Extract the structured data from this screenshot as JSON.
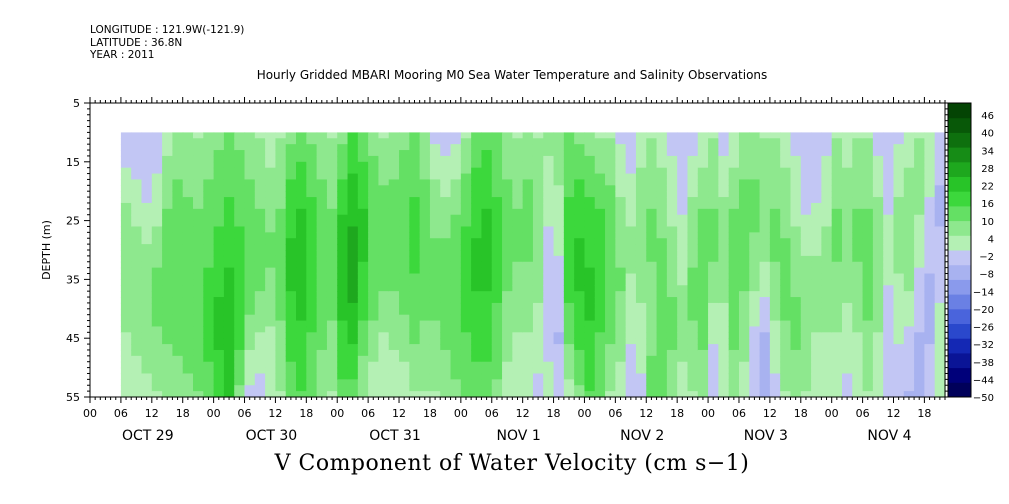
{
  "header": {
    "longitude": "LONGITUDE : 121.9W(-121.9)",
    "latitude": "LATITUDE : 36.8N",
    "year": "YEAR : 2011",
    "title": "Hourly Gridded MBARI Mooring M0 Sea Water Temperature and Salinity Observations",
    "subtitle": "V Component of Water Velocity (cm s−1)"
  },
  "chart_data": {
    "type": "heatmap",
    "title": "Hourly Gridded MBARI Mooring M0 Sea Water Temperature and Salinity Observations",
    "variable": "V Component of Water Velocity (cm s−1)",
    "ylabel": "DEPTH (m)",
    "y_ticks": [
      5,
      15,
      25,
      35,
      45,
      55
    ],
    "ylim": [
      5,
      55
    ],
    "data_depth_range": [
      10,
      55
    ],
    "x_day_labels": [
      "OCT 29",
      "OCT 30",
      "OCT 31",
      "NOV  1",
      "NOV  2",
      "NOV  3",
      "NOV  4"
    ],
    "x_hour_labels": [
      "00",
      "06",
      "12",
      "18"
    ],
    "x_range_hours": [
      0,
      166
    ],
    "data_start_hour": 6,
    "colorbar": {
      "labels": [
        "46",
        "40",
        "34",
        "28",
        "22",
        "16",
        "10",
        "4",
        "−2",
        "−8",
        "−14",
        "−20",
        "−26",
        "−32",
        "−38",
        "−44",
        "−50"
      ],
      "min": -50,
      "max": 49,
      "step": 3,
      "colors_low_to_high": [
        "#00005a",
        "#00007a",
        "#0a1496",
        "#1428b4",
        "#2a48cc",
        "#4a64dc",
        "#6a80e4",
        "#8a9aec",
        "#a8b2f0",
        "#c2c6f4",
        "#b4f0b4",
        "#8ee88e",
        "#64e064",
        "#3cd83c",
        "#28c428",
        "#1ea81e",
        "#168c16",
        "#0e700e",
        "#085808",
        "#044404"
      ]
    },
    "columns_profile": [
      {
        "hour": 6,
        "v": [
          -4,
          -1,
          3,
          6,
          8,
          8,
          6,
          4,
          4,
          3
        ]
      },
      {
        "hour": 8,
        "v": [
          -5,
          -3,
          1,
          4,
          6,
          7,
          7,
          6,
          3,
          1
        ]
      },
      {
        "hour": 10,
        "v": [
          -3,
          -3,
          -2,
          2,
          5,
          8,
          9,
          8,
          5,
          2
        ]
      },
      {
        "hour": 12,
        "v": [
          -1,
          -2,
          2,
          4,
          8,
          10,
          10,
          9,
          7,
          4
        ]
      },
      {
        "hour": 14,
        "v": [
          3,
          5,
          8,
          10,
          12,
          13,
          12,
          10,
          7,
          5
        ]
      },
      {
        "hour": 16,
        "v": [
          6,
          8,
          10,
          12,
          14,
          14,
          13,
          11,
          8,
          5
        ]
      },
      {
        "hour": 18,
        "v": [
          5,
          7,
          9,
          11,
          12,
          13,
          13,
          12,
          10,
          6
        ]
      },
      {
        "hour": 20,
        "v": [
          4,
          6,
          8,
          10,
          12,
          13,
          14,
          14,
          12,
          9
        ]
      },
      {
        "hour": 22,
        "v": [
          6,
          8,
          10,
          12,
          13,
          15,
          16,
          16,
          14,
          12
        ]
      },
      {
        "hour": 24,
        "v": [
          8,
          10,
          12,
          14,
          16,
          18,
          20,
          20,
          18,
          16
        ]
      },
      {
        "hour": 26,
        "v": [
          10,
          12,
          14,
          16,
          18,
          20,
          22,
          24,
          24,
          22
        ]
      },
      {
        "hour": 28,
        "v": [
          8,
          10,
          12,
          14,
          16,
          18,
          18,
          16,
          12,
          8
        ]
      },
      {
        "hour": 30,
        "v": [
          6,
          8,
          10,
          12,
          14,
          12,
          10,
          6,
          2,
          -2
        ]
      },
      {
        "hour": 32,
        "v": [
          4,
          6,
          8,
          10,
          12,
          10,
          8,
          4,
          0,
          -3
        ]
      },
      {
        "hour": 34,
        "v": [
          2,
          4,
          7,
          9,
          10,
          9,
          6,
          3,
          1,
          0
        ]
      },
      {
        "hour": 36,
        "v": [
          4,
          6,
          8,
          10,
          12,
          12,
          10,
          8,
          6,
          4
        ]
      },
      {
        "hour": 38,
        "v": [
          8,
          12,
          16,
          18,
          20,
          20,
          18,
          16,
          14,
          12
        ]
      },
      {
        "hour": 40,
        "v": [
          10,
          14,
          18,
          20,
          22,
          22,
          20,
          18,
          16,
          14
        ]
      },
      {
        "hour": 42,
        "v": [
          8,
          12,
          14,
          16,
          18,
          18,
          16,
          14,
          12,
          10
        ]
      },
      {
        "hour": 44,
        "v": [
          6,
          8,
          10,
          12,
          14,
          14,
          12,
          10,
          8,
          6
        ]
      },
      {
        "hour": 46,
        "v": [
          4,
          6,
          8,
          10,
          12,
          12,
          10,
          8,
          6,
          4
        ]
      },
      {
        "hour": 48,
        "v": [
          8,
          12,
          16,
          20,
          22,
          22,
          20,
          18,
          16,
          12
        ]
      },
      {
        "hour": 50,
        "v": [
          14,
          18,
          22,
          24,
          26,
          26,
          24,
          20,
          16,
          12
        ]
      },
      {
        "hour": 52,
        "v": [
          10,
          14,
          18,
          20,
          20,
          18,
          16,
          12,
          8,
          6
        ]
      },
      {
        "hour": 54,
        "v": [
          6,
          10,
          12,
          14,
          14,
          12,
          10,
          8,
          4,
          2
        ]
      },
      {
        "hour": 56,
        "v": [
          4,
          6,
          10,
          12,
          12,
          10,
          8,
          4,
          2,
          0
        ]
      },
      {
        "hour": 58,
        "v": [
          6,
          8,
          10,
          12,
          12,
          10,
          8,
          6,
          2,
          0
        ]
      },
      {
        "hour": 60,
        "v": [
          8,
          10,
          12,
          14,
          14,
          12,
          10,
          6,
          4,
          2
        ]
      },
      {
        "hour": 62,
        "v": [
          10,
          12,
          14,
          16,
          16,
          14,
          12,
          10,
          6,
          4
        ]
      },
      {
        "hour": 64,
        "v": [
          6,
          8,
          10,
          12,
          12,
          12,
          10,
          8,
          6,
          4
        ]
      },
      {
        "hour": 66,
        "v": [
          -2,
          2,
          6,
          8,
          10,
          10,
          10,
          8,
          6,
          4
        ]
      },
      {
        "hour": 68,
        "v": [
          -4,
          0,
          4,
          8,
          10,
          12,
          12,
          10,
          8,
          6
        ]
      },
      {
        "hour": 70,
        "v": [
          -2,
          2,
          6,
          10,
          12,
          14,
          14,
          12,
          10,
          8
        ]
      },
      {
        "hour": 72,
        "v": [
          4,
          8,
          12,
          14,
          16,
          18,
          16,
          14,
          12,
          10
        ]
      },
      {
        "hour": 74,
        "v": [
          10,
          14,
          16,
          18,
          20,
          20,
          18,
          16,
          14,
          12
        ]
      },
      {
        "hour": 76,
        "v": [
          12,
          16,
          18,
          20,
          20,
          20,
          18,
          16,
          14,
          12
        ]
      },
      {
        "hour": 78,
        "v": [
          10,
          12,
          14,
          16,
          16,
          16,
          14,
          12,
          10,
          8
        ]
      },
      {
        "hour": 80,
        "v": [
          6,
          8,
          10,
          12,
          12,
          10,
          8,
          6,
          4,
          2
        ]
      },
      {
        "hour": 82,
        "v": [
          4,
          6,
          8,
          10,
          10,
          8,
          6,
          4,
          2,
          0
        ]
      },
      {
        "hour": 84,
        "v": [
          6,
          8,
          10,
          10,
          10,
          8,
          6,
          4,
          2,
          2
        ]
      },
      {
        "hour": 86,
        "v": [
          4,
          6,
          8,
          8,
          8,
          6,
          4,
          2,
          0,
          -2
        ]
      },
      {
        "hour": 88,
        "v": [
          6,
          4,
          2,
          0,
          -2,
          -4,
          -4,
          -2,
          0,
          2
        ]
      },
      {
        "hour": 90,
        "v": [
          8,
          6,
          4,
          2,
          0,
          -2,
          -4,
          -6,
          -4,
          -2
        ]
      },
      {
        "hour": 92,
        "v": [
          10,
          12,
          14,
          16,
          18,
          16,
          14,
          10,
          6,
          2
        ]
      },
      {
        "hour": 94,
        "v": [
          8,
          12,
          16,
          18,
          20,
          20,
          18,
          16,
          12,
          8
        ]
      },
      {
        "hour": 96,
        "v": [
          6,
          10,
          14,
          16,
          18,
          20,
          20,
          18,
          16,
          14
        ]
      },
      {
        "hour": 98,
        "v": [
          4,
          8,
          12,
          16,
          18,
          18,
          16,
          14,
          12,
          10
        ]
      },
      {
        "hour": 100,
        "v": [
          4,
          6,
          10,
          12,
          14,
          14,
          12,
          10,
          6,
          4
        ]
      },
      {
        "hour": 102,
        "v": [
          -2,
          2,
          4,
          6,
          8,
          10,
          8,
          6,
          4,
          2
        ]
      },
      {
        "hour": 104,
        "v": [
          -4,
          -2,
          2,
          4,
          6,
          4,
          2,
          0,
          -2,
          -4
        ]
      },
      {
        "hour": 106,
        "v": [
          2,
          4,
          6,
          8,
          8,
          6,
          4,
          2,
          0,
          -2
        ]
      },
      {
        "hour": 108,
        "v": [
          4,
          6,
          8,
          10,
          10,
          8,
          8,
          8,
          10,
          12
        ]
      },
      {
        "hour": 110,
        "v": [
          2,
          4,
          6,
          8,
          10,
          12,
          12,
          14,
          14,
          12
        ]
      },
      {
        "hour": 112,
        "v": [
          -2,
          0,
          2,
          4,
          6,
          8,
          10,
          10,
          8,
          6
        ]
      },
      {
        "hour": 114,
        "v": [
          -4,
          -4,
          -2,
          0,
          2,
          4,
          6,
          6,
          4,
          2
        ]
      },
      {
        "hour": 116,
        "v": [
          -2,
          0,
          4,
          6,
          8,
          10,
          10,
          8,
          6,
          4
        ]
      },
      {
        "hour": 118,
        "v": [
          2,
          4,
          8,
          10,
          12,
          12,
          12,
          10,
          8,
          6
        ]
      },
      {
        "hour": 120,
        "v": [
          4,
          6,
          8,
          10,
          10,
          8,
          4,
          0,
          -2,
          -2
        ]
      },
      {
        "hour": 122,
        "v": [
          -2,
          0,
          4,
          6,
          8,
          6,
          4,
          2,
          0,
          0
        ]
      },
      {
        "hour": 124,
        "v": [
          2,
          4,
          8,
          10,
          12,
          12,
          10,
          10,
          8,
          6
        ]
      },
      {
        "hour": 126,
        "v": [
          6,
          8,
          10,
          12,
          12,
          10,
          8,
          6,
          4,
          2
        ]
      },
      {
        "hour": 128,
        "v": [
          6,
          8,
          10,
          10,
          8,
          6,
          2,
          -2,
          -4,
          -4
        ]
      },
      {
        "hour": 130,
        "v": [
          4,
          6,
          8,
          8,
          6,
          2,
          -2,
          -6,
          -6,
          -6
        ]
      },
      {
        "hour": 132,
        "v": [
          4,
          6,
          8,
          10,
          10,
          8,
          6,
          2,
          0,
          -2
        ]
      },
      {
        "hour": 134,
        "v": [
          2,
          4,
          6,
          8,
          10,
          10,
          10,
          8,
          6,
          4
        ]
      },
      {
        "hour": 136,
        "v": [
          -2,
          0,
          2,
          4,
          6,
          8,
          10,
          10,
          8,
          6
        ]
      },
      {
        "hour": 138,
        "v": [
          -4,
          -4,
          -2,
          0,
          4,
          6,
          8,
          8,
          6,
          4
        ]
      },
      {
        "hour": 140,
        "v": [
          -4,
          -4,
          -2,
          2,
          4,
          6,
          6,
          4,
          2,
          0
        ]
      },
      {
        "hour": 142,
        "v": [
          -2,
          0,
          2,
          4,
          6,
          8,
          6,
          4,
          4,
          4
        ]
      },
      {
        "hour": 144,
        "v": [
          4,
          6,
          8,
          10,
          10,
          8,
          6,
          4,
          2,
          0
        ]
      },
      {
        "hour": 146,
        "v": [
          2,
          4,
          6,
          8,
          8,
          6,
          4,
          2,
          0,
          -2
        ]
      },
      {
        "hour": 148,
        "v": [
          4,
          6,
          8,
          10,
          10,
          8,
          6,
          4,
          2,
          2
        ]
      },
      {
        "hour": 150,
        "v": [
          4,
          6,
          8,
          10,
          12,
          12,
          10,
          8,
          6,
          4
        ]
      },
      {
        "hour": 152,
        "v": [
          -2,
          0,
          4,
          6,
          8,
          8,
          6,
          4,
          2,
          2
        ]
      },
      {
        "hour": 154,
        "v": [
          -4,
          -4,
          -2,
          0,
          2,
          0,
          -2,
          -4,
          -4,
          -4
        ]
      },
      {
        "hour": 156,
        "v": [
          -2,
          2,
          4,
          6,
          6,
          4,
          2,
          0,
          -2,
          -4
        ]
      },
      {
        "hour": 158,
        "v": [
          2,
          4,
          6,
          8,
          8,
          6,
          2,
          -2,
          -4,
          -6
        ]
      },
      {
        "hour": 160,
        "v": [
          4,
          6,
          6,
          4,
          2,
          -2,
          -4,
          -6,
          -6,
          -6
        ]
      },
      {
        "hour": 162,
        "v": [
          2,
          2,
          0,
          -2,
          -4,
          -6,
          -6,
          -6,
          -4,
          -2
        ]
      },
      {
        "hour": 164,
        "v": [
          -2,
          -4,
          -6,
          -6,
          -4,
          -2,
          0,
          2,
          2,
          2
        ]
      },
      {
        "hour": 166,
        "v": [
          -4,
          -2,
          0,
          2,
          4,
          6,
          8,
          8,
          6,
          4
        ]
      }
    ]
  }
}
